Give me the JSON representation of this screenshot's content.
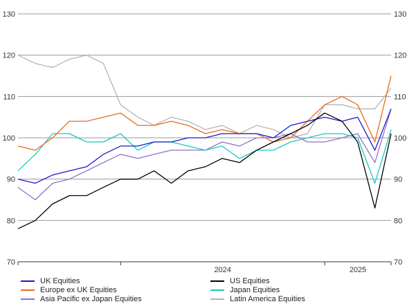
{
  "chart_data": {
    "type": "line",
    "x_tick_labels": [
      "2024",
      "2025"
    ],
    "y_ticks": [
      70,
      80,
      90,
      100,
      110,
      120,
      130
    ],
    "ylim": [
      70,
      130
    ],
    "xlim": [
      "2023-07-01",
      "2025-04-30"
    ],
    "grid": true,
    "legend_position": "bottom",
    "series": [
      {
        "name": "UK Equities",
        "color": "#1a1acc",
        "x": [
          "2023-07-01",
          "2023-08-01",
          "2023-09-01",
          "2023-10-01",
          "2023-11-01",
          "2023-12-01",
          "2024-01-01",
          "2024-02-01",
          "2024-03-01",
          "2024-04-01",
          "2024-05-01",
          "2024-06-01",
          "2024-07-01",
          "2024-08-01",
          "2024-09-01",
          "2024-10-01",
          "2024-11-01",
          "2024-12-01",
          "2025-01-01",
          "2025-02-01",
          "2025-03-01",
          "2025-04-01",
          "2025-04-30"
        ],
        "values": [
          90,
          89,
          91,
          92,
          93,
          96,
          98,
          98,
          99,
          99,
          100,
          100,
          101,
          101,
          101,
          100,
          103,
          104,
          105,
          104,
          105,
          97,
          107
        ]
      },
      {
        "name": "US Equities",
        "color": "#000000",
        "x": [
          "2023-07-01",
          "2023-08-01",
          "2023-09-01",
          "2023-10-01",
          "2023-11-01",
          "2023-12-01",
          "2024-01-01",
          "2024-02-01",
          "2024-03-01",
          "2024-04-01",
          "2024-05-01",
          "2024-06-01",
          "2024-07-01",
          "2024-08-01",
          "2024-09-01",
          "2024-10-01",
          "2024-11-01",
          "2024-12-01",
          "2025-01-01",
          "2025-02-01",
          "2025-03-01",
          "2025-04-01",
          "2025-04-30"
        ],
        "values": [
          78,
          80,
          84,
          86,
          86,
          88,
          90,
          90,
          92,
          89,
          92,
          93,
          95,
          94,
          97,
          99,
          101,
          103,
          106,
          104,
          99,
          83,
          101
        ]
      },
      {
        "name": "Europe ex UK Equities",
        "color": "#e86a1a",
        "x": [
          "2023-07-01",
          "2023-08-01",
          "2023-09-01",
          "2023-10-01",
          "2023-11-01",
          "2023-12-01",
          "2024-01-01",
          "2024-02-01",
          "2024-03-01",
          "2024-04-01",
          "2024-05-01",
          "2024-06-01",
          "2024-07-01",
          "2024-08-01",
          "2024-09-01",
          "2024-10-01",
          "2024-11-01",
          "2024-12-01",
          "2025-01-01",
          "2025-02-01",
          "2025-03-01",
          "2025-04-01",
          "2025-04-30"
        ],
        "values": [
          98,
          97,
          100,
          104,
          104,
          105,
          106,
          103,
          103,
          104,
          103,
          101,
          102,
          101,
          101,
          99,
          100,
          104,
          108,
          110,
          108,
          99,
          115
        ]
      },
      {
        "name": "Japan Equities",
        "color": "#1ac8c0",
        "x": [
          "2023-07-01",
          "2023-08-01",
          "2023-09-01",
          "2023-10-01",
          "2023-11-01",
          "2023-12-01",
          "2024-01-01",
          "2024-02-01",
          "2024-03-01",
          "2024-04-01",
          "2024-05-01",
          "2024-06-01",
          "2024-07-01",
          "2024-08-01",
          "2024-09-01",
          "2024-10-01",
          "2024-11-01",
          "2024-12-01",
          "2025-01-01",
          "2025-02-01",
          "2025-03-01",
          "2025-04-01",
          "2025-04-30"
        ],
        "values": [
          92,
          96,
          101,
          101,
          99,
          99,
          101,
          97,
          99,
          99,
          98,
          97,
          98,
          95,
          97,
          97,
          99,
          100,
          101,
          101,
          100,
          89,
          102
        ]
      },
      {
        "name": "Asia Pacific ex Japan Equities",
        "color": "#8f6fcc",
        "x": [
          "2023-07-01",
          "2023-08-01",
          "2023-09-01",
          "2023-10-01",
          "2023-11-01",
          "2023-12-01",
          "2024-01-01",
          "2024-02-01",
          "2024-03-01",
          "2024-04-01",
          "2024-05-01",
          "2024-06-01",
          "2024-07-01",
          "2024-08-01",
          "2024-09-01",
          "2024-10-01",
          "2024-11-01",
          "2024-12-01",
          "2025-01-01",
          "2025-02-01",
          "2025-03-01",
          "2025-04-01",
          "2025-04-30"
        ],
        "values": [
          88,
          85,
          89,
          90,
          92,
          94,
          96,
          95,
          96,
          97,
          97,
          97,
          99,
          98,
          100,
          100,
          101,
          99,
          99,
          100,
          101,
          94,
          107
        ]
      },
      {
        "name": "Latin America Equities",
        "color": "#b4b4b4",
        "x": [
          "2023-07-01",
          "2023-08-01",
          "2023-09-01",
          "2023-10-01",
          "2023-11-01",
          "2023-12-01",
          "2024-01-01",
          "2024-02-01",
          "2024-03-01",
          "2024-04-01",
          "2024-05-01",
          "2024-06-01",
          "2024-07-01",
          "2024-08-01",
          "2024-09-01",
          "2024-10-01",
          "2024-11-01",
          "2024-12-01",
          "2025-01-01",
          "2025-02-01",
          "2025-03-01",
          "2025-04-01",
          "2025-04-30"
        ],
        "values": [
          120,
          118,
          117,
          119,
          120,
          118,
          108,
          105,
          103,
          105,
          104,
          102,
          103,
          101,
          103,
          102,
          100,
          101,
          108,
          108,
          107,
          107,
          112
        ]
      }
    ]
  }
}
